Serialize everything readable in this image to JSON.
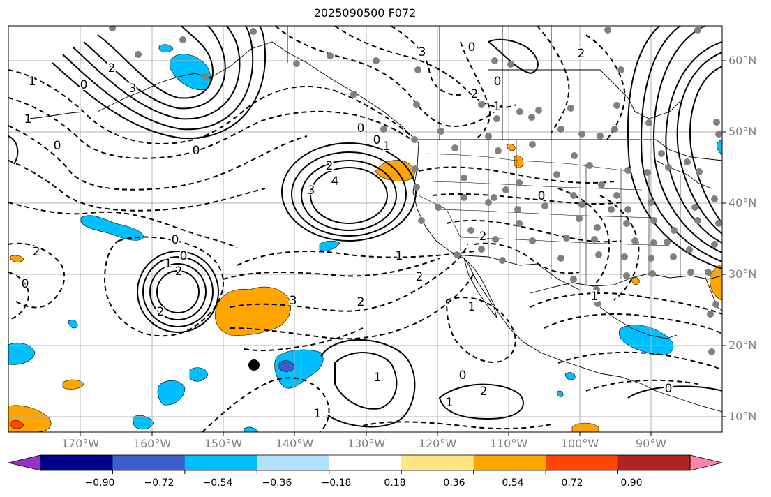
{
  "title": "2025090500 F072",
  "lat_labels": [
    "60°N",
    "50°N",
    "40°N",
    "30°N",
    "20°N",
    "10°N"
  ],
  "lon_labels": [
    "170°W",
    "160°W",
    "150°W",
    "140°W",
    "130°W",
    "120°W",
    "110°W",
    "100°W",
    "90°W"
  ],
  "colorbar": {
    "ticks": [
      "−0.90",
      "−0.72",
      "−0.54",
      "−0.36",
      "−0.18",
      "0.18",
      "0.36",
      "0.54",
      "0.72",
      "0.90"
    ],
    "colors": [
      "#9932cc",
      "#00008b",
      "#3a5fcd",
      "#00bfff",
      "#b0e2ff",
      "#ffffff",
      "#ffe680",
      "#ffa500",
      "#ff4500",
      "#b22222",
      "#ff82ab"
    ]
  },
  "contour_labels": [
    {
      "id": "c1",
      "text": "0"
    },
    {
      "id": "c2",
      "text": "1"
    },
    {
      "id": "c3",
      "text": "2"
    },
    {
      "id": "c4",
      "text": "3"
    },
    {
      "id": "c5",
      "text": "4"
    },
    {
      "id": "c6",
      "text": "0"
    },
    {
      "id": "c7",
      "text": "1"
    },
    {
      "id": "c8",
      "text": "2"
    },
    {
      "id": "c9",
      "text": "0"
    },
    {
      "id": "c10",
      "text": "1"
    },
    {
      "id": "c11",
      "text": "2"
    },
    {
      "id": "c12",
      "text": "3"
    },
    {
      "id": "c13",
      "text": "0"
    },
    {
      "id": "c14",
      "text": "2"
    },
    {
      "id": "c15",
      "text": "2"
    },
    {
      "id": "c16",
      "text": "1"
    },
    {
      "id": "c17",
      "text": "0"
    },
    {
      "id": "c18",
      "text": "1"
    },
    {
      "id": "c19",
      "text": "2"
    },
    {
      "id": "c20",
      "text": "3"
    },
    {
      "id": "c21",
      "text": "0"
    },
    {
      "id": "c22",
      "text": "1"
    },
    {
      "id": "c23",
      "text": "2"
    },
    {
      "id": "c24",
      "text": "1"
    },
    {
      "id": "c25",
      "text": "0"
    },
    {
      "id": "c26",
      "text": "0"
    },
    {
      "id": "c27",
      "text": "2"
    },
    {
      "id": "c28",
      "text": "3"
    },
    {
      "id": "c29",
      "text": "0"
    },
    {
      "id": "c30",
      "text": "2"
    },
    {
      "id": "c31",
      "text": "1"
    },
    {
      "id": "c32",
      "text": "0"
    },
    {
      "id": "c33",
      "text": "1"
    },
    {
      "id": "c34",
      "text": "2"
    },
    {
      "id": "c35",
      "text": "0"
    },
    {
      "id": "c36",
      "text": "2"
    },
    {
      "id": "c37",
      "text": "0"
    },
    {
      "id": "c38",
      "text": "1"
    },
    {
      "id": "c39",
      "text": "0"
    },
    {
      "id": "c40",
      "text": "1"
    }
  ]
}
